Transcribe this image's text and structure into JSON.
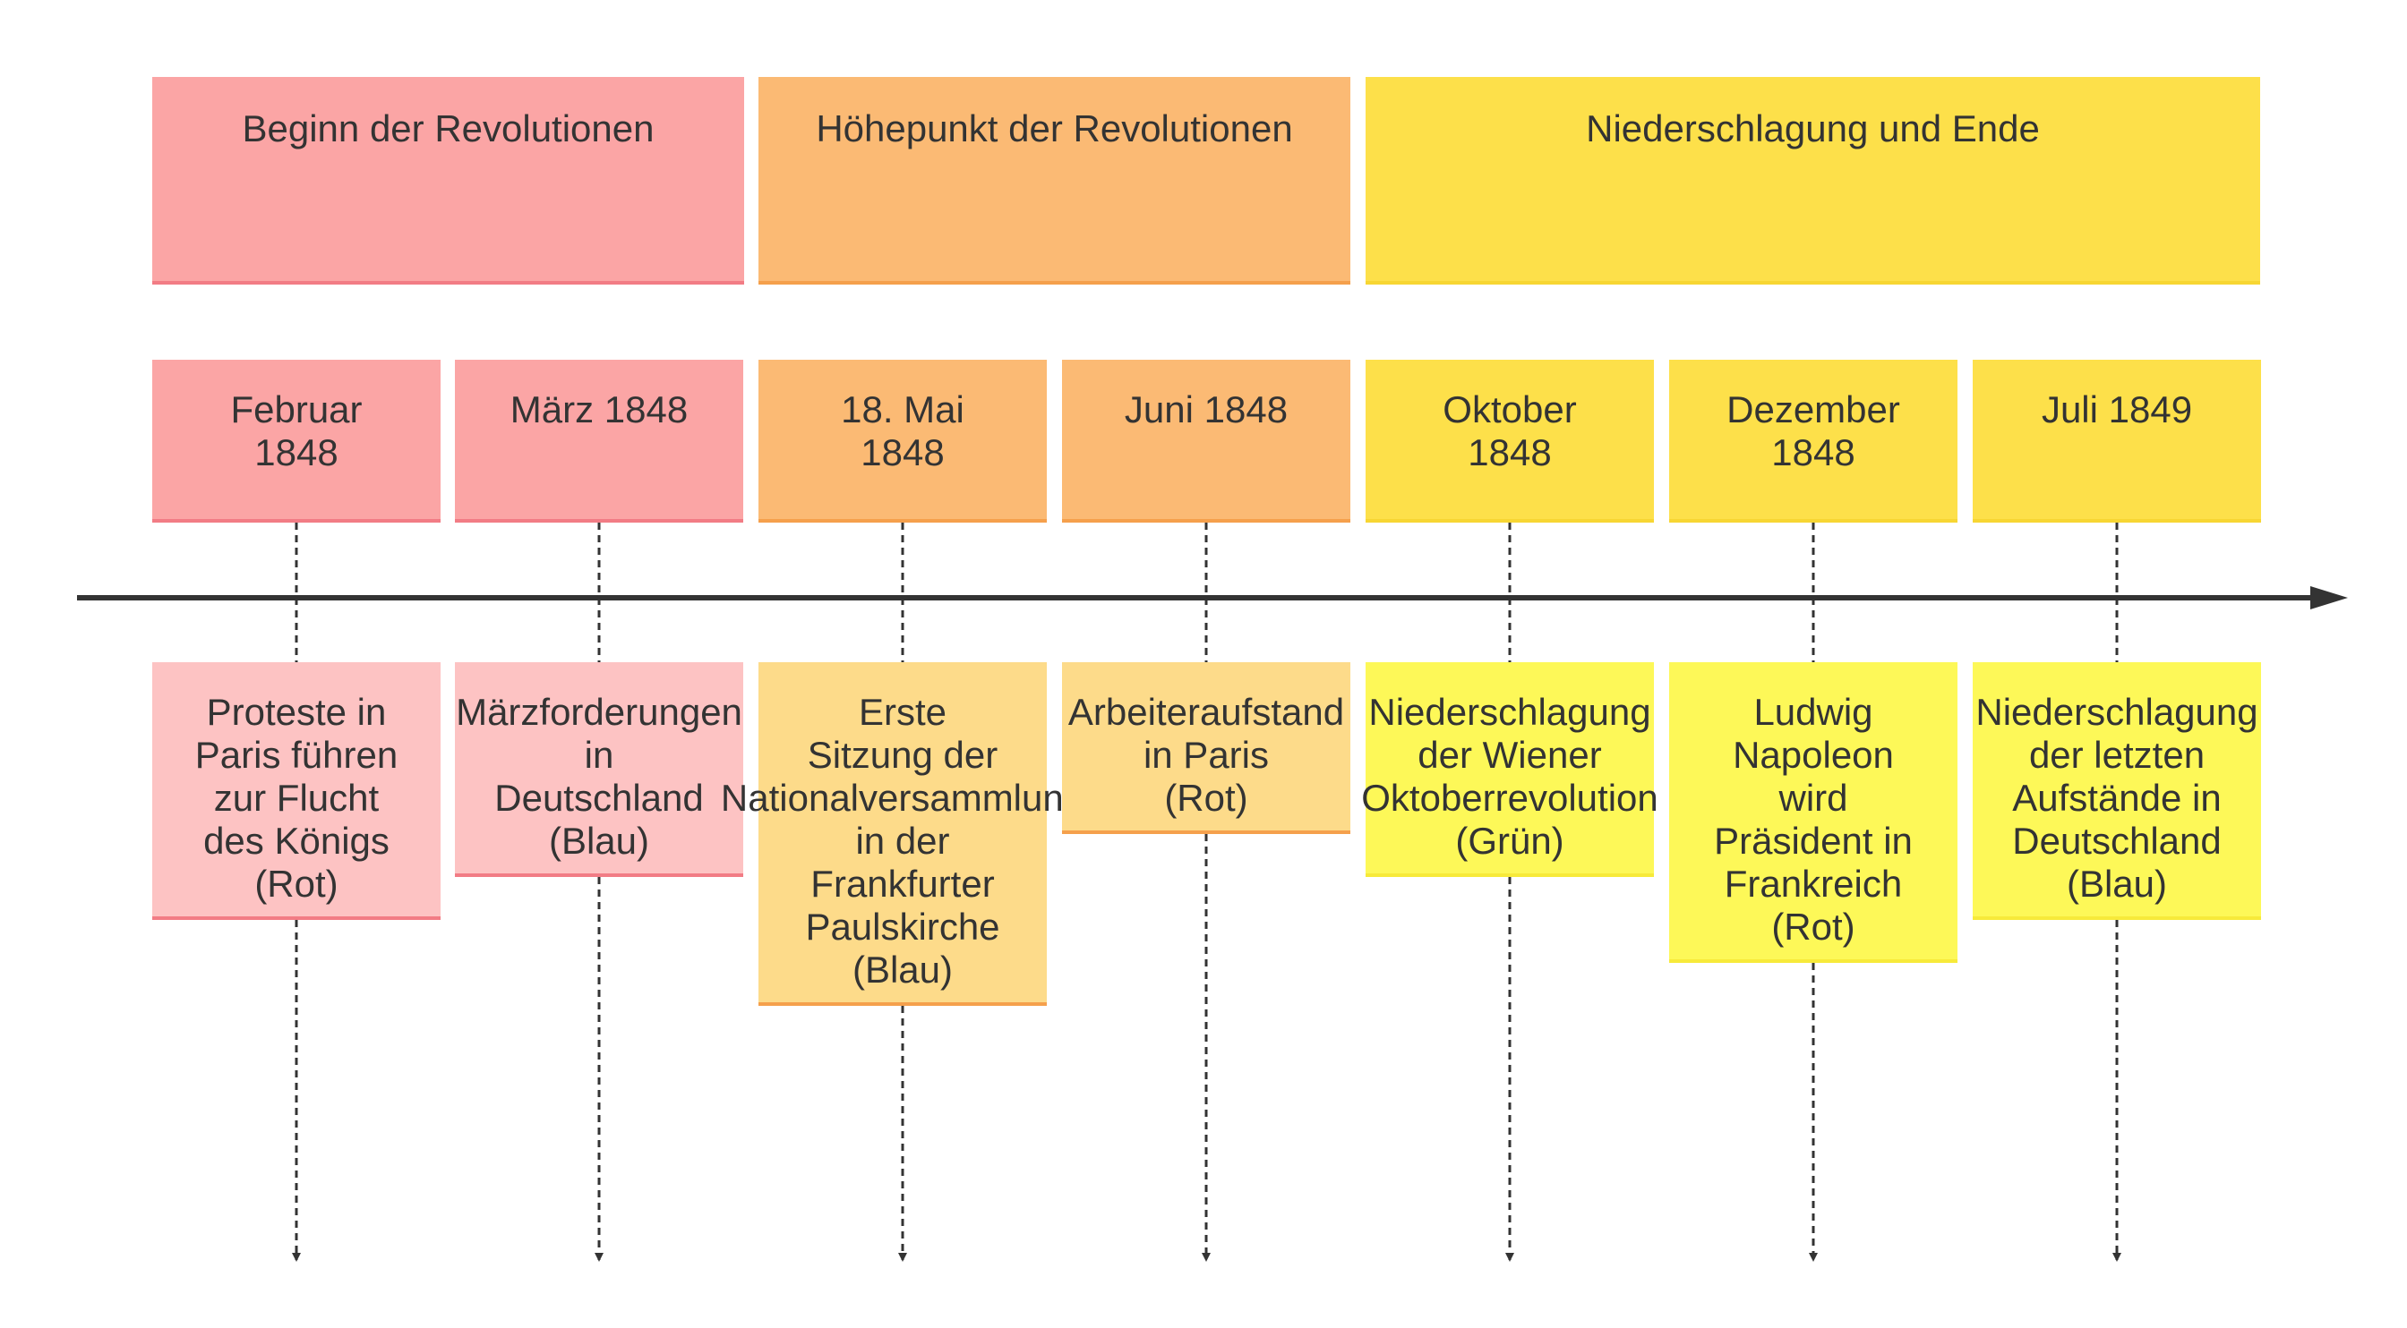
{
  "sections": [
    {
      "label": "Beginn der Revolutionen",
      "color": "#fba5a5",
      "border": "#f27c85"
    },
    {
      "label": "Höhepunkt der Revolutionen",
      "color": "#fbba74",
      "border": "#f5a04c"
    },
    {
      "label": "Niederschlagung und Ende",
      "color": "#fde04a",
      "border": "#f7d633"
    }
  ],
  "periods": [
    {
      "label": "Februar\n1848",
      "section": 0,
      "event": {
        "label": "Proteste in\nParis führen\nzur Flucht\ndes Königs\n(Rot)",
        "color": "#fdc3c3",
        "border": "#f27c85"
      }
    },
    {
      "label": "März 1848",
      "section": 0,
      "event": {
        "label": "Märzforderungen\nin\nDeutschland\n(Blau)",
        "color": "#fdc3c3",
        "border": "#f27c85"
      }
    },
    {
      "label": "18. Mai\n1848",
      "section": 1,
      "event": {
        "label": "Erste\nSitzung der\nNationalversammlung\nin der\nFrankfurter\nPaulskirche\n(Blau)",
        "color": "#fddb8a",
        "border": "#f5a04c"
      }
    },
    {
      "label": "Juni 1848",
      "section": 1,
      "event": {
        "label": "Arbeiteraufstand\nin Paris\n(Rot)",
        "color": "#fddb8a",
        "border": "#f5a04c"
      }
    },
    {
      "label": "Oktober\n1848",
      "section": 2,
      "event": {
        "label": "Niederschlagung\nder Wiener\nOktoberrevolution\n(Grün)",
        "color": "#fdf858",
        "border": "#f7ea3a"
      }
    },
    {
      "label": "Dezember\n1848",
      "section": 2,
      "event": {
        "label": "Ludwig\nNapoleon\nwird\nPräsident in\nFrankreich\n(Rot)",
        "color": "#fdf858",
        "border": "#f7ea3a"
      }
    },
    {
      "label": "Juli 1849",
      "section": 2,
      "event": {
        "label": "Niederschlagung\nder letzten\nAufstände in\nDeutschland\n(Blau)",
        "color": "#fdf858",
        "border": "#f7ea3a"
      }
    }
  ]
}
